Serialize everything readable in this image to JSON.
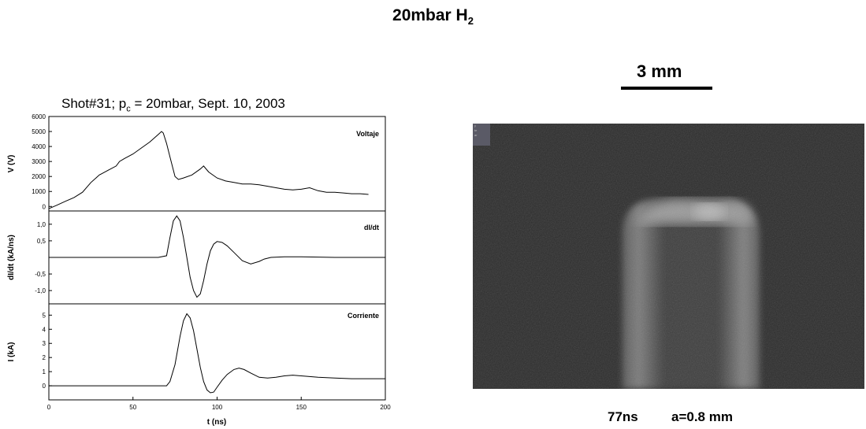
{
  "header": {
    "title_main": "20mbar H",
    "title_sub": "2"
  },
  "chart_header": {
    "prefix": "Shot#31; p",
    "sub": "c",
    "suffix": " = 20mbar, Sept. 10,  2003"
  },
  "chart_data": [
    {
      "type": "line",
      "panel": "voltage",
      "title": "",
      "xlabel": "",
      "ylabel": "V (V)",
      "xlim": [
        0,
        200
      ],
      "ylim": [
        -300,
        6000
      ],
      "yticks": [
        0,
        1000,
        2000,
        3000,
        4000,
        5000,
        6000
      ],
      "ytick_labels": [
        "0",
        "1000",
        "2000",
        "3000",
        "4000",
        "5000",
        "6000"
      ],
      "legend": "Voltaje",
      "series": [
        {
          "name": "Voltaje",
          "x": [
            0,
            5,
            10,
            15,
            20,
            25,
            28,
            30,
            35,
            40,
            42,
            45,
            50,
            55,
            60,
            65,
            67,
            68,
            70,
            72,
            75,
            77,
            80,
            85,
            90,
            92,
            95,
            100,
            105,
            110,
            115,
            120,
            125,
            130,
            135,
            140,
            145,
            150,
            155,
            160,
            165,
            170,
            175,
            180,
            185,
            190
          ],
          "y": [
            -150,
            100,
            350,
            600,
            950,
            1600,
            1900,
            2100,
            2400,
            2700,
            3000,
            3200,
            3500,
            3900,
            4300,
            4800,
            5000,
            4900,
            4200,
            3300,
            2000,
            1800,
            1900,
            2100,
            2500,
            2700,
            2300,
            1900,
            1700,
            1600,
            1500,
            1500,
            1450,
            1350,
            1250,
            1150,
            1100,
            1150,
            1250,
            1050,
            950,
            950,
            900,
            850,
            850,
            800
          ]
        }
      ]
    },
    {
      "type": "line",
      "panel": "dIdt",
      "title": "",
      "xlabel": "",
      "ylabel": "dI/dt (kA/ns)",
      "xlim": [
        0,
        200
      ],
      "ylim": [
        -1.4,
        1.4
      ],
      "yticks": [
        -1.0,
        -0.5,
        0.5,
        1.0
      ],
      "ytick_labels": [
        "-1,0",
        "-0,5",
        "0,5",
        "1,0"
      ],
      "legend": "dI/dt",
      "series": [
        {
          "name": "dI/dt",
          "x": [
            0,
            65,
            70,
            72,
            74,
            76,
            78,
            80,
            82,
            84,
            86,
            88,
            90,
            92,
            94,
            96,
            98,
            100,
            103,
            106,
            110,
            115,
            120,
            125,
            128,
            132,
            140,
            150,
            160,
            170,
            180,
            190,
            200
          ],
          "y": [
            0,
            0,
            0.05,
            0.6,
            1.1,
            1.25,
            1.1,
            0.6,
            0.0,
            -0.6,
            -1.0,
            -1.2,
            -1.1,
            -0.7,
            -0.2,
            0.2,
            0.4,
            0.48,
            0.45,
            0.35,
            0.15,
            -0.1,
            -0.2,
            -0.12,
            -0.05,
            0.0,
            0.02,
            0.02,
            0.01,
            0.0,
            0.0,
            0.0,
            0.0
          ]
        }
      ]
    },
    {
      "type": "line",
      "panel": "current",
      "title": "",
      "xlabel": "t (ns)",
      "ylabel": "I (kA)",
      "xlim": [
        0,
        200
      ],
      "ylim": [
        -1,
        5.8
      ],
      "yticks": [
        0,
        1,
        2,
        3,
        4,
        5
      ],
      "ytick_labels": [
        "0",
        "1",
        "2",
        "3",
        "4",
        "5"
      ],
      "xticks": [
        0,
        50,
        100,
        150,
        200
      ],
      "xtick_labels": [
        "0",
        "50",
        "100",
        "150",
        "200"
      ],
      "legend": "Corriente",
      "series": [
        {
          "name": "Corriente",
          "x": [
            0,
            70,
            72,
            75,
            78,
            80,
            82,
            84,
            86,
            88,
            90,
            92,
            94,
            96,
            98,
            100,
            103,
            106,
            110,
            113,
            116,
            120,
            125,
            130,
            135,
            140,
            145,
            150,
            160,
            170,
            180,
            190,
            200
          ],
          "y": [
            0,
            0,
            0.3,
            1.5,
            3.5,
            4.6,
            5.1,
            4.8,
            3.9,
            2.6,
            1.3,
            0.3,
            -0.3,
            -0.5,
            -0.45,
            -0.1,
            0.4,
            0.8,
            1.15,
            1.25,
            1.15,
            0.9,
            0.6,
            0.55,
            0.6,
            0.7,
            0.75,
            0.7,
            0.6,
            0.55,
            0.5,
            0.5,
            0.5
          ]
        }
      ]
    }
  ],
  "scale": {
    "label": "3 mm"
  },
  "photo": {
    "overlay_items": [
      "y",
      "te",
      "ar"
    ]
  },
  "caption": {
    "time": "77ns",
    "param": "a=0.8 mm"
  }
}
